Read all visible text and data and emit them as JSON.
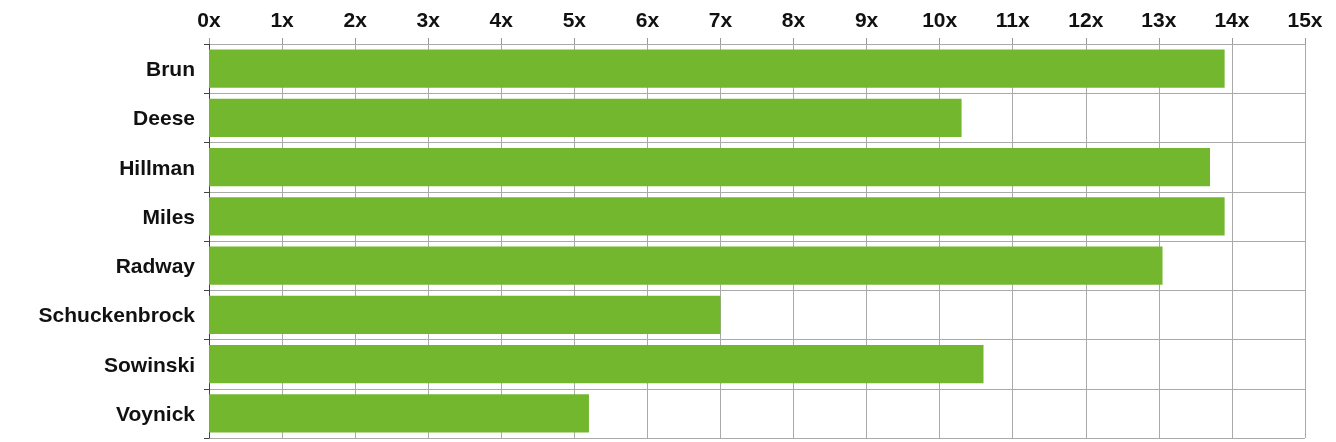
{
  "chart_data": {
    "type": "bar",
    "orientation": "horizontal",
    "categories": [
      "Brun",
      "Deese",
      "Hillman",
      "Miles",
      "Radway",
      "Schuckenbrock",
      "Sowinski",
      "Voynick"
    ],
    "values": [
      13.9,
      10.3,
      13.7,
      13.9,
      13.05,
      7.0,
      10.6,
      5.2
    ],
    "color": "#73b72f",
    "xlim": [
      0,
      15
    ],
    "xticks": [
      {
        "value": 0,
        "label": "0x"
      },
      {
        "value": 1,
        "label": "1x"
      },
      {
        "value": 2,
        "label": "2x"
      },
      {
        "value": 3,
        "label": "3x"
      },
      {
        "value": 4,
        "label": "4x"
      },
      {
        "value": 5,
        "label": "5x"
      },
      {
        "value": 6,
        "label": "6x"
      },
      {
        "value": 7,
        "label": "7x"
      },
      {
        "value": 8,
        "label": "8x"
      },
      {
        "value": 9,
        "label": "9x"
      },
      {
        "value": 10,
        "label": "10x"
      },
      {
        "value": 11,
        "label": "11x"
      },
      {
        "value": 12,
        "label": "12x"
      },
      {
        "value": 13,
        "label": "13x"
      },
      {
        "value": 14,
        "label": "14x"
      },
      {
        "value": 15,
        "label": "15x"
      }
    ],
    "grid": true
  }
}
